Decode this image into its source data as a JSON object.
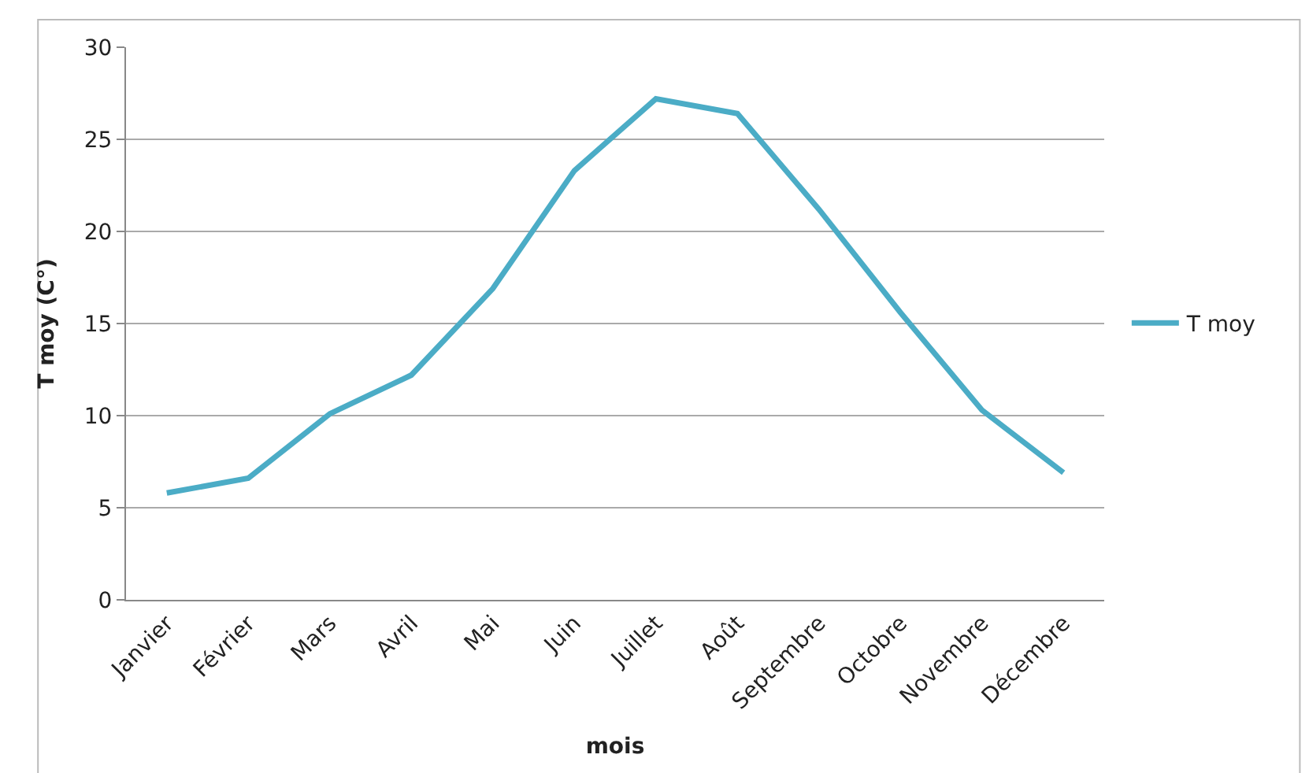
{
  "chart_data": {
    "type": "line",
    "xlabel": "mois",
    "ylabel": "T moy (C°)",
    "categories": [
      "Janvier",
      "Février",
      "Mars",
      "Avril",
      "Mai",
      "Juin",
      "Juillet",
      "Août",
      "Septembre",
      "Octobre",
      "Novembre",
      "Décembre"
    ],
    "series": [
      {
        "name": "T moy",
        "color": "#4bacc6",
        "values": [
          5.8,
          6.6,
          10.1,
          12.2,
          16.9,
          23.3,
          27.2,
          26.4,
          21.2,
          15.6,
          10.3,
          6.9
        ]
      }
    ],
    "ylim": [
      0,
      30
    ],
    "yticks": [
      0,
      5,
      10,
      15,
      20,
      25,
      30
    ],
    "grid": "y",
    "legend": "right",
    "marker": "none",
    "line_style": "solid"
  }
}
